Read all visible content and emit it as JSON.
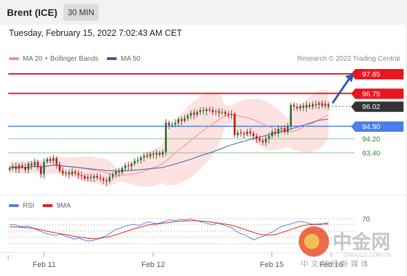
{
  "header": {
    "instrument": "Brent (ICE)",
    "interval": "30 MIN"
  },
  "datetime": "Tuesday, February 15, 2022 7:02:43 AM CET",
  "credit": "Research © 2022 Trading Central",
  "watermark": {
    "name": "中金网",
    "url": "CNGOLD.COM.CN",
    "slogan": "中 文 财 经 新 媒 体"
  },
  "colors": {
    "resistance": "#e8161f",
    "support": "#4b7fe8",
    "support_minor": "#2a8a2a",
    "last_price": "#333333",
    "ma20": "#f28c8c",
    "bollinger_fill": "#fde2e2",
    "ma50": "#3a5ba0",
    "rsi": "#5b7fd6",
    "rsi_9ma": "#d62222",
    "arrow": "#2e5aa8",
    "up_candle": "#2f6b2f",
    "down_candle": "#c01818"
  },
  "chart_data": [
    {
      "type": "candlestick",
      "legend": [
        "MA 20 + Bollinger Bands",
        "MA 50"
      ],
      "x_ticks": [
        "Feb 11",
        "Feb 12",
        "Feb 15",
        "Feb 16"
      ],
      "ylim": [
        91.6,
        98.2
      ],
      "levels": [
        {
          "value": 97.85,
          "label": "97.85",
          "kind": "resistance"
        },
        {
          "value": 96.75,
          "label": "96.75",
          "kind": "resistance"
        },
        {
          "value": 96.02,
          "label": "96.02",
          "kind": "last_price"
        },
        {
          "value": 94.9,
          "label": "94.90",
          "kind": "support"
        },
        {
          "value": 94.2,
          "label": "94.20",
          "kind": "support_minor"
        },
        {
          "value": 93.4,
          "label": "93.40",
          "kind": "support_minor"
        }
      ],
      "arrow": {
        "from": [
          96.2
        ],
        "to": [
          97.85
        ]
      },
      "closes": [
        92.55,
        92.65,
        92.5,
        92.7,
        92.6,
        92.45,
        92.8,
        92.7,
        92.9,
        92.6,
        92.2,
        92.9,
        93.05,
        92.95,
        93.1,
        92.75,
        92.4,
        92.25,
        92.3,
        92.2,
        92.35,
        92.25,
        92.15,
        92.1,
        91.95,
        92.05,
        92.0,
        92.1,
        92.0,
        91.95,
        91.85,
        91.8,
        92.05,
        92.2,
        92.35,
        92.3,
        92.55,
        92.7,
        92.65,
        92.8,
        92.95,
        93.0,
        93.15,
        93.25,
        93.2,
        93.35,
        93.3,
        93.4,
        93.3,
        93.45,
        95.1,
        94.95,
        95.0,
        95.1,
        95.3,
        95.2,
        95.35,
        95.5,
        95.65,
        95.55,
        95.7,
        95.8,
        95.75,
        95.85,
        95.8,
        95.7,
        95.75,
        95.65,
        95.7,
        95.6,
        95.55,
        95.6,
        94.4,
        94.55,
        94.5,
        94.45,
        94.6,
        94.5,
        94.35,
        94.2,
        94.1,
        94.0,
        94.2,
        94.35,
        94.6,
        94.5,
        94.75,
        94.8,
        94.6,
        94.9,
        96.1,
        96.0,
        95.9,
        96.05,
        95.95,
        96.1,
        96.0,
        96.15,
        96.1,
        96.2,
        96.05,
        96.15,
        96.02
      ]
    },
    {
      "type": "line",
      "legend": [
        "RSI",
        "9MA"
      ],
      "y_ticks": [
        70
      ],
      "ylim": [
        20,
        80
      ],
      "series": [
        {
          "name": "RSI",
          "values": [
            60,
            61,
            58,
            57,
            58,
            55,
            52,
            49,
            46,
            44,
            43,
            45,
            42,
            40,
            37,
            39,
            36,
            34,
            35,
            37,
            40,
            43,
            48,
            53,
            55,
            58,
            60,
            61,
            59,
            62,
            65,
            63,
            62,
            64,
            67,
            68,
            67,
            69,
            68,
            70,
            68,
            66,
            64,
            62,
            60,
            63,
            61,
            58,
            56,
            50,
            46,
            44,
            39,
            36,
            40,
            42,
            46,
            49,
            54,
            58,
            60,
            62,
            64,
            66,
            64,
            62,
            61,
            60,
            62,
            64
          ]
        },
        {
          "name": "9MA",
          "values": [
            57,
            57,
            56.5,
            56,
            55.5,
            55,
            53.5,
            52,
            50,
            48.5,
            47,
            46,
            44.5,
            43,
            41.5,
            40.5,
            39.5,
            38.5,
            38,
            38,
            39,
            40.5,
            42,
            44,
            46.5,
            49,
            51.5,
            54,
            56,
            58,
            60,
            61,
            61.5,
            62.5,
            63.5,
            64.5,
            65.5,
            66,
            66.5,
            67,
            67,
            66.5,
            66,
            65,
            64,
            63,
            62,
            61,
            59.5,
            57.5,
            55,
            52.5,
            50,
            47.5,
            45.5,
            44,
            43.5,
            44,
            45.5,
            48,
            50.5,
            53,
            55.5,
            58,
            59.5,
            60.5,
            61,
            61.5,
            61.5,
            61.5
          ]
        }
      ]
    }
  ]
}
